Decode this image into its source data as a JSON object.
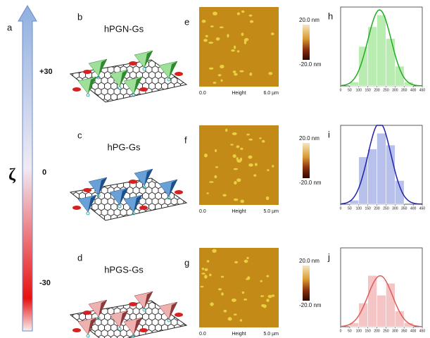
{
  "panel_a": {
    "letter": "a",
    "symbol": "ζ",
    "labels": [
      "+30",
      "0",
      "-30"
    ]
  },
  "schematics": [
    {
      "letter": "b",
      "title": "hPGN-Gs"
    },
    {
      "letter": "c",
      "title": "hPG-Gs"
    },
    {
      "letter": "d",
      "title": "hPGS-Gs"
    }
  ],
  "afm": [
    {
      "letter": "e",
      "x_start": "0.0",
      "x_label": "Height",
      "x_end": "6.0 µm",
      "scale_max": "20.0 nm",
      "scale_min": "-20.0 nm"
    },
    {
      "letter": "f",
      "x_start": "0.0",
      "x_label": "Height",
      "x_end": "5.0 µm",
      "scale_max": "20.0 nm",
      "scale_min": "-20.0 nm"
    },
    {
      "letter": "g",
      "x_start": "0.0",
      "x_label": "Height",
      "x_end": "5.0 µm",
      "scale_max": "20.0 nm",
      "scale_min": "-20.0 nm"
    }
  ],
  "chart_data": [
    {
      "type": "histogram",
      "letter": "h",
      "bins": [
        50,
        100,
        150,
        200,
        250,
        300,
        350,
        400
      ],
      "counts": [
        1,
        10,
        15,
        18,
        12,
        5,
        1
      ],
      "xlim": [
        0,
        450
      ],
      "ylim": [
        0,
        20
      ],
      "xticks": [
        0,
        50,
        100,
        150,
        200,
        250,
        300,
        350,
        400,
        450
      ],
      "color": "#22aa22",
      "bar_color": "#b8ecb0"
    },
    {
      "type": "histogram",
      "letter": "i",
      "bins": [
        50,
        100,
        150,
        200,
        250,
        300,
        350
      ],
      "counts": [
        1,
        12,
        14,
        18,
        15,
        6
      ],
      "xlim": [
        0,
        450
      ],
      "ylim": [
        0,
        20
      ],
      "xticks": [
        0,
        50,
        100,
        150,
        200,
        250,
        300,
        350,
        400,
        450
      ],
      "color": "#2020a8",
      "bar_color": "#b8c0ec"
    },
    {
      "type": "histogram",
      "letter": "j",
      "bins": [
        50,
        100,
        150,
        200,
        250,
        300,
        350,
        400
      ],
      "counts": [
        1,
        6,
        13,
        8,
        11,
        4,
        1
      ],
      "xlim": [
        0,
        450
      ],
      "ylim": [
        0,
        20
      ],
      "xticks": [
        0,
        50,
        100,
        150,
        200,
        250,
        300,
        350,
        400,
        450
      ],
      "color": "#e05a5a",
      "bar_color": "#f5c4c4"
    }
  ]
}
